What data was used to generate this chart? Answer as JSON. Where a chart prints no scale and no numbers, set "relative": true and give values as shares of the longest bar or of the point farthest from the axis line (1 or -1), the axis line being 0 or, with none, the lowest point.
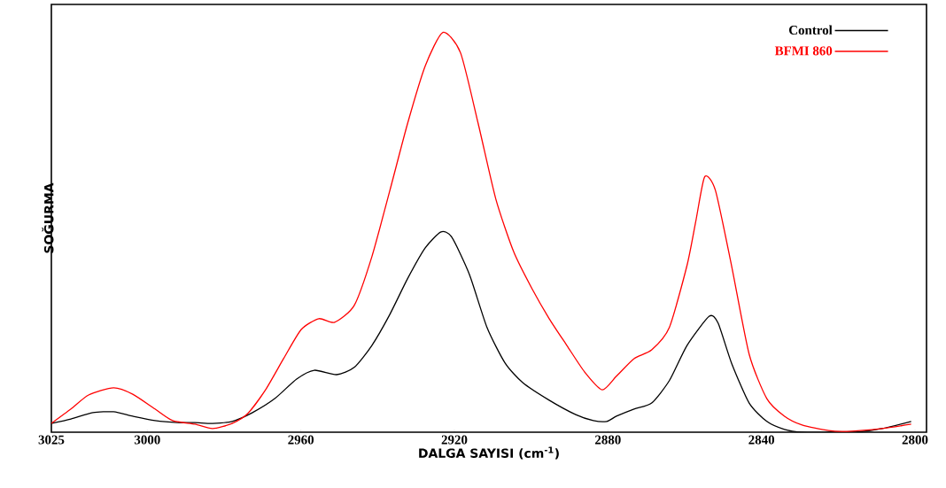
{
  "chart_data": {
    "type": "line",
    "relative": true,
    "xlabel": "DALGA SAYISI  (cm$^{-1}$)",
    "ylabel": "SOĞURMA",
    "xlim": [
      3025,
      2797
    ],
    "xticks": [
      3025,
      3000,
      2960,
      2920,
      2880,
      2840,
      2800
    ],
    "legend": "top right",
    "grid": false,
    "marker": "none",
    "line_style": "solid",
    "series": [
      {
        "name": "Control",
        "color": "#000000",
        "x": [
          3025,
          3019.9,
          3014.2,
          3008.8,
          3003.8,
          2998,
          2992.2,
          2987.6,
          2983,
          2977.9,
          2972.6,
          2966.8,
          2961.1,
          2956.5,
          2950.7,
          2946.1,
          2941.5,
          2936.8,
          2932.2,
          2927.6,
          2923.5,
          2920.7,
          2916.1,
          2911.5,
          2906.8,
          2902.2,
          2895.3,
          2888.4,
          2883.8,
          2880.3,
          2877.8,
          2873.2,
          2868.6,
          2864,
          2859.4,
          2853.6,
          2851.3,
          2847.8,
          2843.2,
          2838.6,
          2834,
          2829.4,
          2822.5,
          2815.5,
          2808.6,
          2801
        ],
        "values": [
          0.022,
          0.033,
          0.049,
          0.051,
          0.04,
          0.029,
          0.024,
          0.024,
          0.022,
          0.027,
          0.049,
          0.084,
          0.133,
          0.155,
          0.144,
          0.162,
          0.217,
          0.295,
          0.384,
          0.461,
          0.501,
          0.488,
          0.395,
          0.262,
          0.173,
          0.124,
          0.08,
          0.044,
          0.029,
          0.027,
          0.04,
          0.058,
          0.073,
          0.129,
          0.217,
          0.29,
          0.273,
          0.173,
          0.073,
          0.027,
          0.007,
          0,
          0,
          0,
          0.009,
          0.027
        ]
      },
      {
        "name": "BFMI 860",
        "color": "#ff0000",
        "x": [
          3025,
          3019.9,
          3015.3,
          3008.8,
          3003.8,
          2998,
          2993.4,
          2987.6,
          2983,
          2977.9,
          2973.8,
          2969.2,
          2964.5,
          2959.9,
          2955.3,
          2951.2,
          2946.1,
          2941.5,
          2936.8,
          2932.2,
          2927.6,
          2923,
          2918.4,
          2913.8,
          2909.2,
          2904.5,
          2899.9,
          2895.3,
          2890.7,
          2886.1,
          2881.5,
          2877.8,
          2873.2,
          2868.6,
          2864,
          2859.4,
          2857.1,
          2854.8,
          2852,
          2847.8,
          2843.2,
          2838.6,
          2834,
          2829.4,
          2822.5,
          2817.8,
          2808.6,
          2801
        ],
        "values": [
          0.022,
          0.058,
          0.093,
          0.111,
          0.095,
          0.058,
          0.029,
          0.02,
          0.009,
          0.022,
          0.047,
          0.106,
          0.184,
          0.257,
          0.284,
          0.275,
          0.317,
          0.439,
          0.605,
          0.772,
          0.916,
          1,
          0.949,
          0.772,
          0.583,
          0.45,
          0.361,
          0.284,
          0.217,
          0.151,
          0.106,
          0.14,
          0.184,
          0.206,
          0.262,
          0.417,
          0.528,
          0.639,
          0.605,
          0.417,
          0.195,
          0.084,
          0.04,
          0.018,
          0.004,
          0.002,
          0.009,
          0.02
        ]
      }
    ]
  }
}
